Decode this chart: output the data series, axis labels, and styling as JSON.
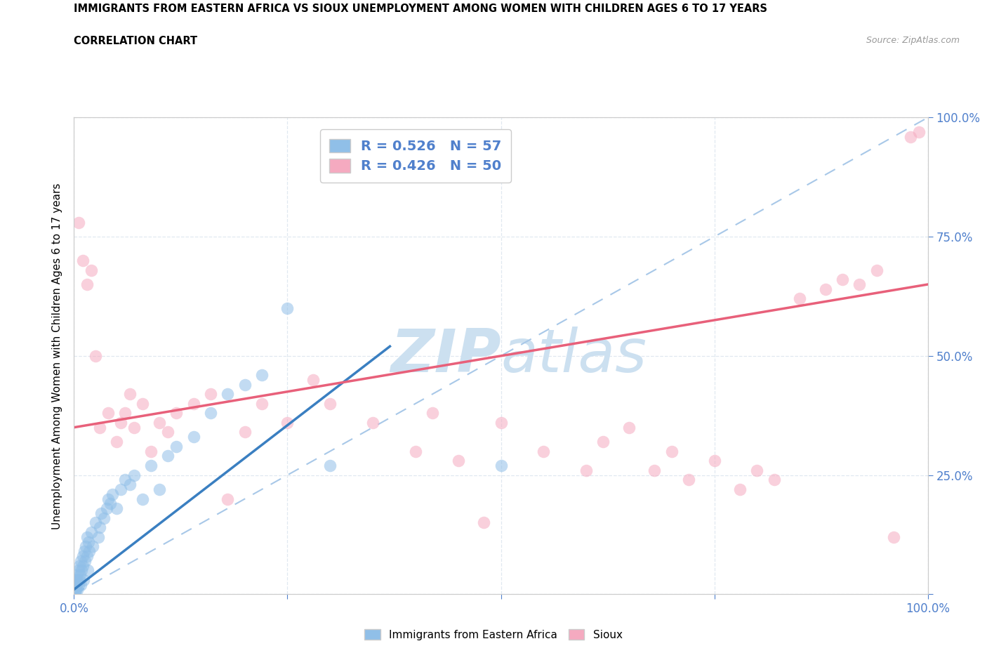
{
  "title": "IMMIGRANTS FROM EASTERN AFRICA VS SIOUX UNEMPLOYMENT AMONG WOMEN WITH CHILDREN AGES 6 TO 17 YEARS",
  "subtitle": "CORRELATION CHART",
  "source": "Source: ZipAtlas.com",
  "ylabel": "Unemployment Among Women with Children Ages 6 to 17 years",
  "xlim": [
    0.0,
    1.0
  ],
  "ylim": [
    0.0,
    1.0
  ],
  "blue_R": 0.526,
  "blue_N": 57,
  "pink_R": 0.426,
  "pink_N": 50,
  "blue_color": "#90bfe8",
  "pink_color": "#f5aac0",
  "blue_line_color": "#3a7fc1",
  "pink_line_color": "#e8607a",
  "diag_color": "#a8c8e8",
  "watermark_color": "#cce0f0",
  "grid_color": "#e0e8f0",
  "tick_color": "#5080cc",
  "blue_line_x0": 0.0,
  "blue_line_x1": 0.37,
  "blue_line_y0": 0.01,
  "blue_line_y1": 0.52,
  "pink_line_x0": 0.0,
  "pink_line_x1": 1.0,
  "pink_line_y0": 0.35,
  "pink_line_y1": 0.65,
  "blue_scatter": [
    [
      0.001,
      0.005
    ],
    [
      0.001,
      0.01
    ],
    [
      0.001,
      0.02
    ],
    [
      0.002,
      0.01
    ],
    [
      0.002,
      0.03
    ],
    [
      0.003,
      0.02
    ],
    [
      0.003,
      0.04
    ],
    [
      0.004,
      0.01
    ],
    [
      0.004,
      0.03
    ],
    [
      0.005,
      0.02
    ],
    [
      0.005,
      0.05
    ],
    [
      0.006,
      0.03
    ],
    [
      0.006,
      0.06
    ],
    [
      0.007,
      0.04
    ],
    [
      0.008,
      0.02
    ],
    [
      0.008,
      0.07
    ],
    [
      0.009,
      0.05
    ],
    [
      0.01,
      0.06
    ],
    [
      0.01,
      0.08
    ],
    [
      0.011,
      0.03
    ],
    [
      0.012,
      0.09
    ],
    [
      0.013,
      0.07
    ],
    [
      0.014,
      0.1
    ],
    [
      0.015,
      0.08
    ],
    [
      0.015,
      0.12
    ],
    [
      0.016,
      0.05
    ],
    [
      0.017,
      0.11
    ],
    [
      0.018,
      0.09
    ],
    [
      0.02,
      0.13
    ],
    [
      0.022,
      0.1
    ],
    [
      0.025,
      0.15
    ],
    [
      0.028,
      0.12
    ],
    [
      0.03,
      0.14
    ],
    [
      0.032,
      0.17
    ],
    [
      0.035,
      0.16
    ],
    [
      0.038,
      0.18
    ],
    [
      0.04,
      0.2
    ],
    [
      0.042,
      0.19
    ],
    [
      0.045,
      0.21
    ],
    [
      0.05,
      0.18
    ],
    [
      0.055,
      0.22
    ],
    [
      0.06,
      0.24
    ],
    [
      0.065,
      0.23
    ],
    [
      0.07,
      0.25
    ],
    [
      0.08,
      0.2
    ],
    [
      0.09,
      0.27
    ],
    [
      0.1,
      0.22
    ],
    [
      0.11,
      0.29
    ],
    [
      0.12,
      0.31
    ],
    [
      0.14,
      0.33
    ],
    [
      0.16,
      0.38
    ],
    [
      0.18,
      0.42
    ],
    [
      0.2,
      0.44
    ],
    [
      0.22,
      0.46
    ],
    [
      0.25,
      0.6
    ],
    [
      0.3,
      0.27
    ],
    [
      0.5,
      0.27
    ]
  ],
  "pink_scatter": [
    [
      0.005,
      0.78
    ],
    [
      0.01,
      0.7
    ],
    [
      0.015,
      0.65
    ],
    [
      0.02,
      0.68
    ],
    [
      0.025,
      0.5
    ],
    [
      0.03,
      0.35
    ],
    [
      0.04,
      0.38
    ],
    [
      0.05,
      0.32
    ],
    [
      0.055,
      0.36
    ],
    [
      0.06,
      0.38
    ],
    [
      0.065,
      0.42
    ],
    [
      0.07,
      0.35
    ],
    [
      0.08,
      0.4
    ],
    [
      0.09,
      0.3
    ],
    [
      0.1,
      0.36
    ],
    [
      0.11,
      0.34
    ],
    [
      0.12,
      0.38
    ],
    [
      0.14,
      0.4
    ],
    [
      0.16,
      0.42
    ],
    [
      0.18,
      0.2
    ],
    [
      0.2,
      0.34
    ],
    [
      0.22,
      0.4
    ],
    [
      0.25,
      0.36
    ],
    [
      0.28,
      0.45
    ],
    [
      0.3,
      0.4
    ],
    [
      0.35,
      0.36
    ],
    [
      0.4,
      0.3
    ],
    [
      0.42,
      0.38
    ],
    [
      0.45,
      0.28
    ],
    [
      0.48,
      0.15
    ],
    [
      0.5,
      0.36
    ],
    [
      0.55,
      0.3
    ],
    [
      0.6,
      0.26
    ],
    [
      0.62,
      0.32
    ],
    [
      0.65,
      0.35
    ],
    [
      0.68,
      0.26
    ],
    [
      0.7,
      0.3
    ],
    [
      0.72,
      0.24
    ],
    [
      0.75,
      0.28
    ],
    [
      0.78,
      0.22
    ],
    [
      0.8,
      0.26
    ],
    [
      0.82,
      0.24
    ],
    [
      0.85,
      0.62
    ],
    [
      0.88,
      0.64
    ],
    [
      0.9,
      0.66
    ],
    [
      0.92,
      0.65
    ],
    [
      0.94,
      0.68
    ],
    [
      0.96,
      0.12
    ],
    [
      0.98,
      0.96
    ],
    [
      0.99,
      0.97
    ]
  ]
}
